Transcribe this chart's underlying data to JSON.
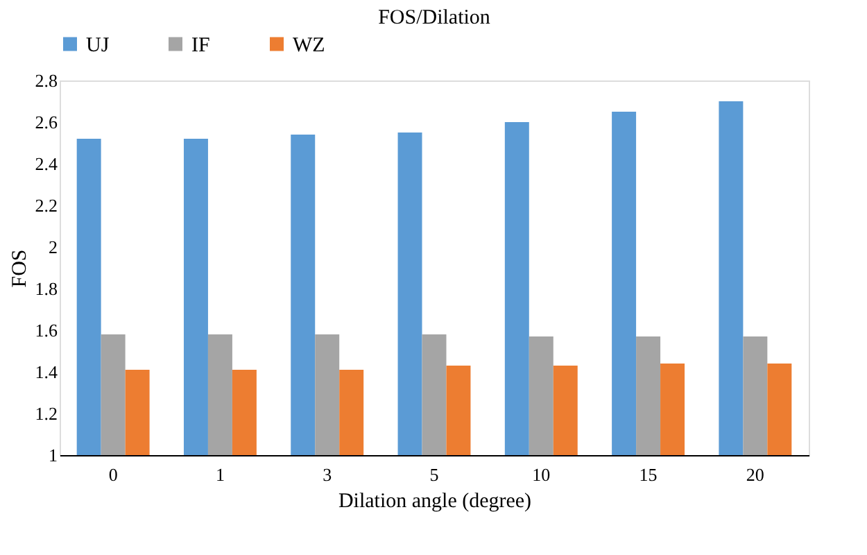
{
  "chart_data": {
    "type": "bar",
    "title": "FOS/Dilation",
    "xlabel": "Dilation angle (degree)",
    "ylabel": "FOS",
    "categories": [
      "0",
      "1",
      "3",
      "5",
      "10",
      "15",
      "20"
    ],
    "series": [
      {
        "name": "UJ",
        "color": "#5b9bd5",
        "values": [
          2.52,
          2.52,
          2.54,
          2.55,
          2.6,
          2.65,
          2.7
        ]
      },
      {
        "name": "IF",
        "color": "#a5a5a5",
        "values": [
          1.58,
          1.58,
          1.58,
          1.58,
          1.57,
          1.57,
          1.57
        ]
      },
      {
        "name": "WZ",
        "color": "#ed7d31",
        "values": [
          1.41,
          1.41,
          1.41,
          1.43,
          1.43,
          1.44,
          1.44
        ]
      }
    ],
    "ylim": [
      1,
      2.8
    ],
    "yticks": [
      1,
      1.2,
      1.4,
      1.6,
      1.8,
      2,
      2.2,
      2.4,
      2.6,
      2.8
    ],
    "grid": false,
    "legend": "top"
  }
}
